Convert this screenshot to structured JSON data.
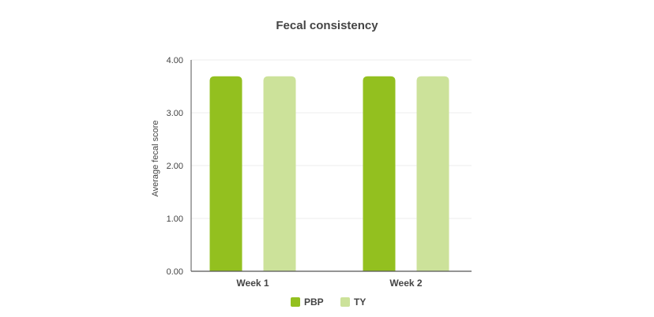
{
  "chart_data": {
    "type": "bar",
    "title": "Fecal consistency",
    "xlabel": "",
    "ylabel": "Average fecal score",
    "categories": [
      "Week 1",
      "Week 2"
    ],
    "series": [
      {
        "name": "PBP",
        "values": [
          3.69,
          3.69
        ],
        "color": "#93c01f"
      },
      {
        "name": "TY",
        "values": [
          3.69,
          3.69
        ],
        "color": "#cce29a"
      }
    ],
    "ylim": [
      0,
      4
    ],
    "yticks": [
      0,
      1,
      2,
      3,
      4
    ],
    "ytick_labels": [
      "0.00",
      "1.00",
      "2.00",
      "3.00",
      "4.00"
    ],
    "grid": true,
    "legend_position": "bottom"
  }
}
